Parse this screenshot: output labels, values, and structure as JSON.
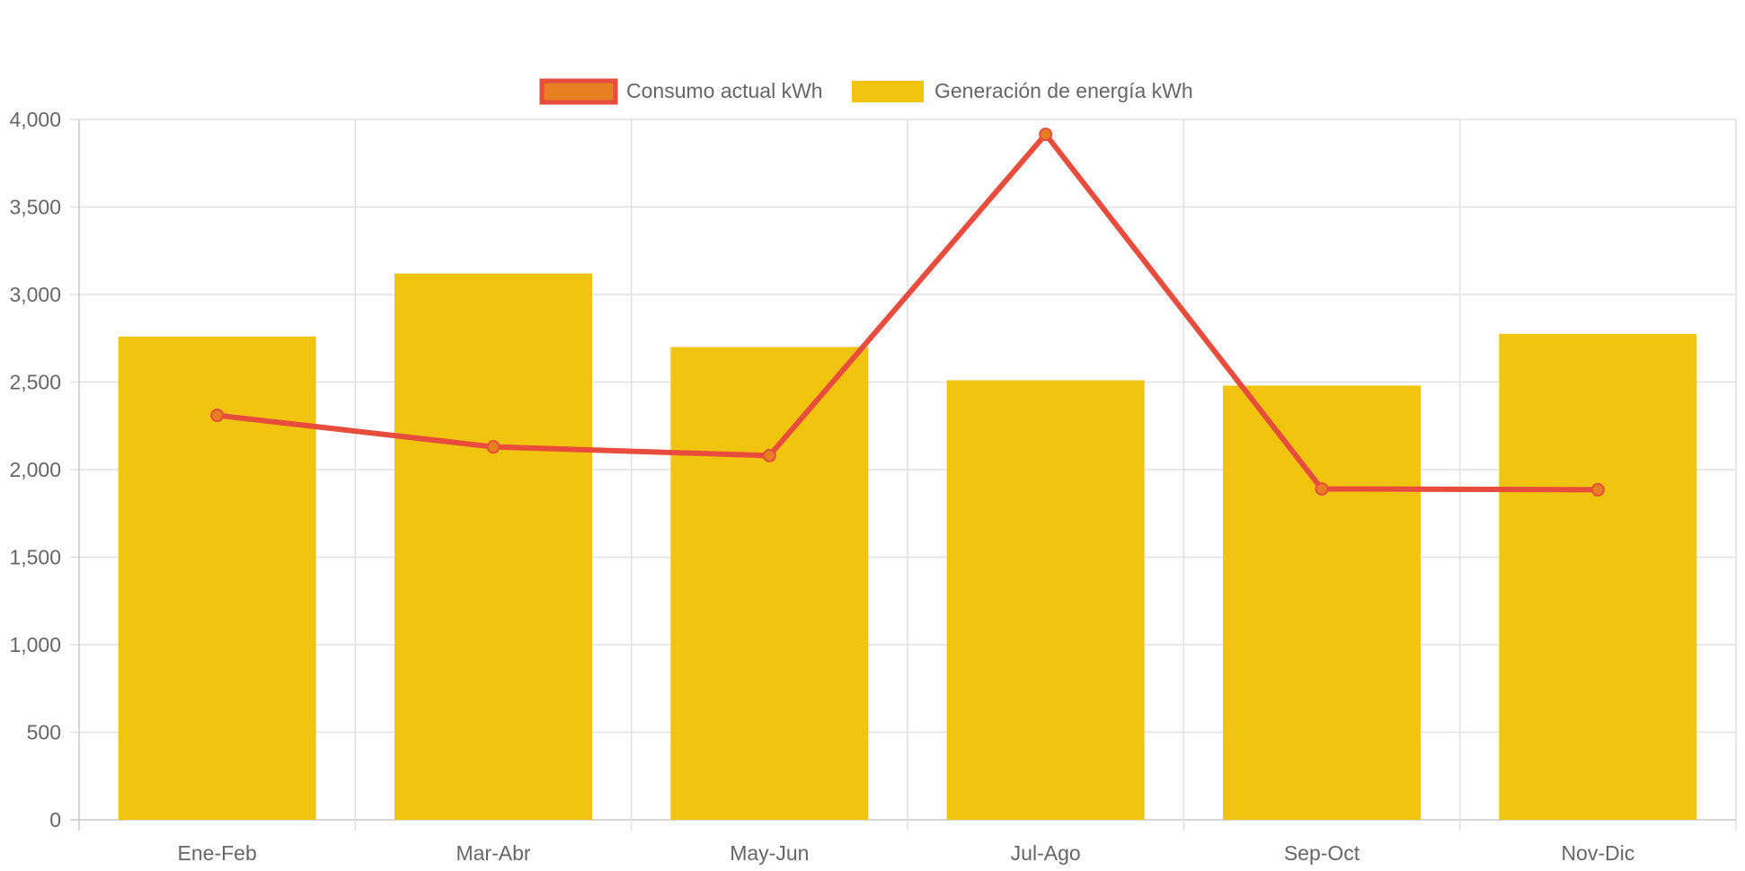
{
  "chart_data": {
    "type": "bar",
    "categories": [
      "Ene-Feb",
      "Mar-Abr",
      "May-Jun",
      "Jul-Ago",
      "Sep-Oct",
      "Nov-Dic"
    ],
    "series": [
      {
        "name": "Consumo actual kWh",
        "type": "line",
        "values": [
          2310,
          2130,
          2080,
          3915,
          1890,
          1885
        ],
        "color": "#e74c3c",
        "point_color": "#e67e22"
      },
      {
        "name": "Generación de energía kWh",
        "type": "bar",
        "values": [
          2760,
          3120,
          2700,
          2510,
          2480,
          2775
        ],
        "color": "#f1c40f"
      }
    ],
    "ylim": [
      0,
      4000
    ],
    "y_ticks": [
      0,
      500,
      1000,
      1500,
      2000,
      2500,
      3000,
      3500,
      4000
    ],
    "y_tick_labels": [
      "0",
      "500",
      "1,000",
      "1,500",
      "2,000",
      "2,500",
      "3,000",
      "3,500",
      "4,000"
    ],
    "grid": true,
    "legend_position": "top-center",
    "title": "",
    "xlabel": "",
    "ylabel": ""
  }
}
